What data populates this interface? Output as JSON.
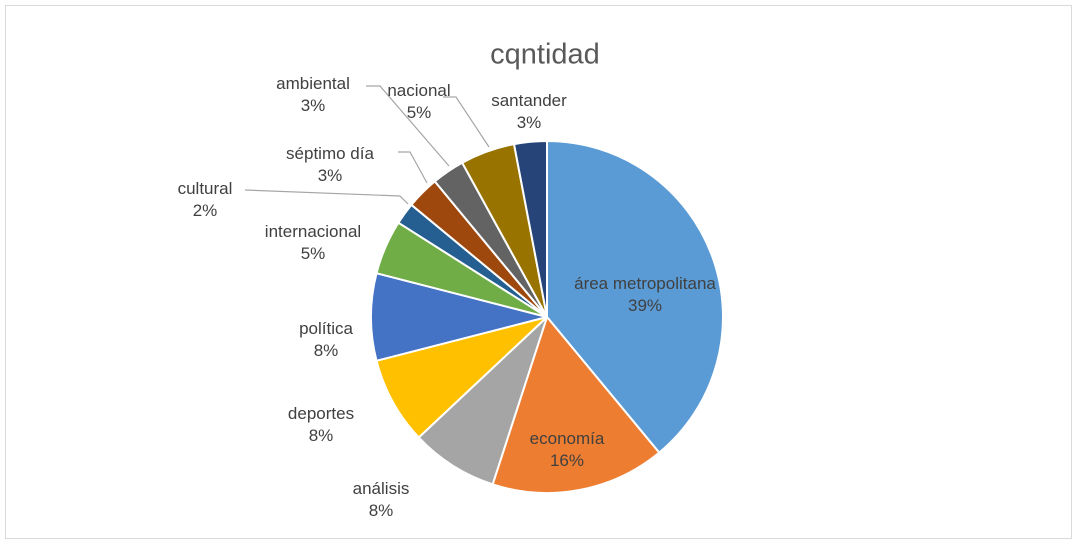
{
  "chart_data": {
    "type": "pie",
    "title": "cqntidad",
    "categories": [
      "área metropolitana",
      "economía",
      "análisis",
      "deportes",
      "política",
      "internacional",
      "cultural",
      "séptimo día",
      "ambiental",
      "nacional",
      "santander"
    ],
    "values": [
      39,
      16,
      8,
      8,
      8,
      5,
      2,
      3,
      3,
      5,
      3
    ],
    "value_labels": [
      "39%",
      "16%",
      "8%",
      "8%",
      "8%",
      "5%",
      "2%",
      "3%",
      "3%",
      "5%",
      "3%"
    ],
    "colors": [
      "#5b9bd5",
      "#ed7d31",
      "#a5a5a5",
      "#ffc000",
      "#4472c4",
      "#70ad47",
      "#255e91",
      "#9e480e",
      "#636363",
      "#997300",
      "#264478"
    ]
  }
}
